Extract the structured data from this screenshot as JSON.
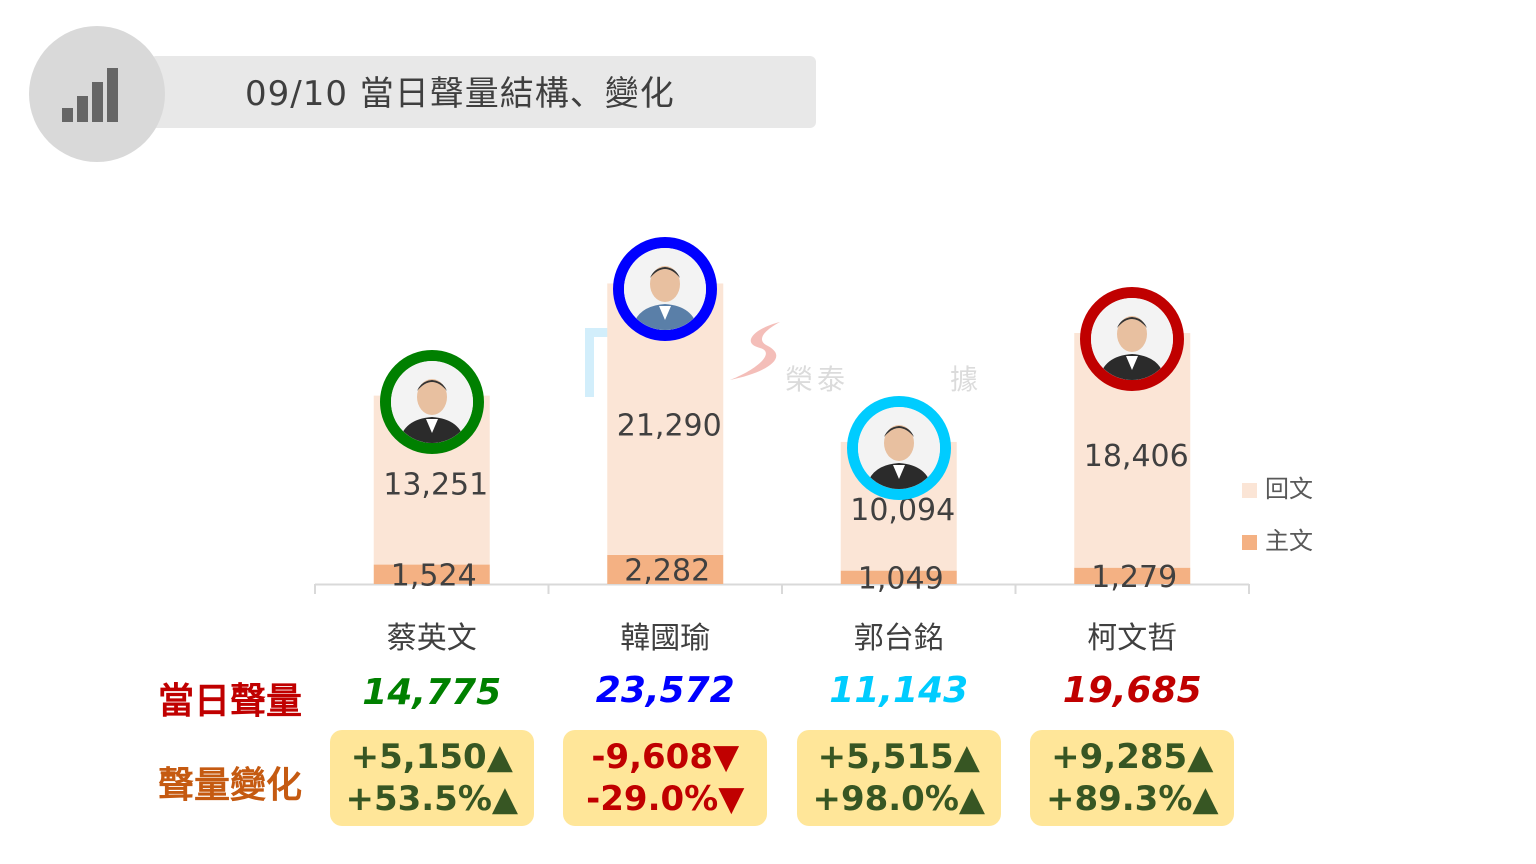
{
  "header": {
    "title": "09/10 當日聲量結構、變化",
    "icon": "signal-bars-icon"
  },
  "watermark": {
    "text": "榮泰大數據",
    "visible_fragments": [
      "榮泰",
      "據"
    ]
  },
  "legend": [
    {
      "label": "回文",
      "color": "#fbe5d6"
    },
    {
      "label": "主文",
      "color": "#f4b183"
    }
  ],
  "chart_data": {
    "type": "bar",
    "stacked": true,
    "categories": [
      "蔡英文",
      "韓國瑜",
      "郭台銘",
      "柯文哲"
    ],
    "series": [
      {
        "name": "主文",
        "color": "#f4b183",
        "values": [
          1524,
          2282,
          1049,
          1279
        ],
        "labels": [
          "1,524",
          "2,282",
          "1,049",
          "1,279"
        ]
      },
      {
        "name": "回文",
        "color": "#fbe5d6",
        "values": [
          13251,
          21290,
          10094,
          18406
        ],
        "labels": [
          "13,251",
          "21,290",
          "10,094",
          "18,406"
        ]
      }
    ],
    "legend_position": "right",
    "grid": false,
    "ylim": [
      0,
      27000
    ]
  },
  "candidates": [
    {
      "name": "蔡英文",
      "ring_color": "#008000",
      "total": "14,775",
      "total_color": "#008000",
      "change_abs": "+5,150▲",
      "change_pct": "+53.5%▲",
      "change_color": "#375623",
      "avatar": "person-photo-icon"
    },
    {
      "name": "韓國瑜",
      "ring_color": "#0000ff",
      "total": "23,572",
      "total_color": "#0000ff",
      "change_abs": "-9,608▼",
      "change_pct": "-29.0%▼",
      "change_color": "#c00000",
      "avatar": "person-photo-icon"
    },
    {
      "name": "郭台銘",
      "ring_color": "#00ccff",
      "total": "11,143",
      "total_color": "#00ccff",
      "change_abs": "+5,515▲",
      "change_pct": "+98.0%▲",
      "change_color": "#375623",
      "avatar": "person-photo-icon"
    },
    {
      "name": "柯文哲",
      "ring_color": "#c00000",
      "total": "19,685",
      "total_color": "#c00000",
      "change_abs": "+9,285▲",
      "change_pct": "+89.3%▲",
      "change_color": "#375623",
      "avatar": "person-photo-icon"
    }
  ],
  "rows": {
    "total_label": "當日聲量",
    "total_label_color": "#c00000",
    "change_label": "聲量變化",
    "change_label_color": "#c55a11"
  }
}
